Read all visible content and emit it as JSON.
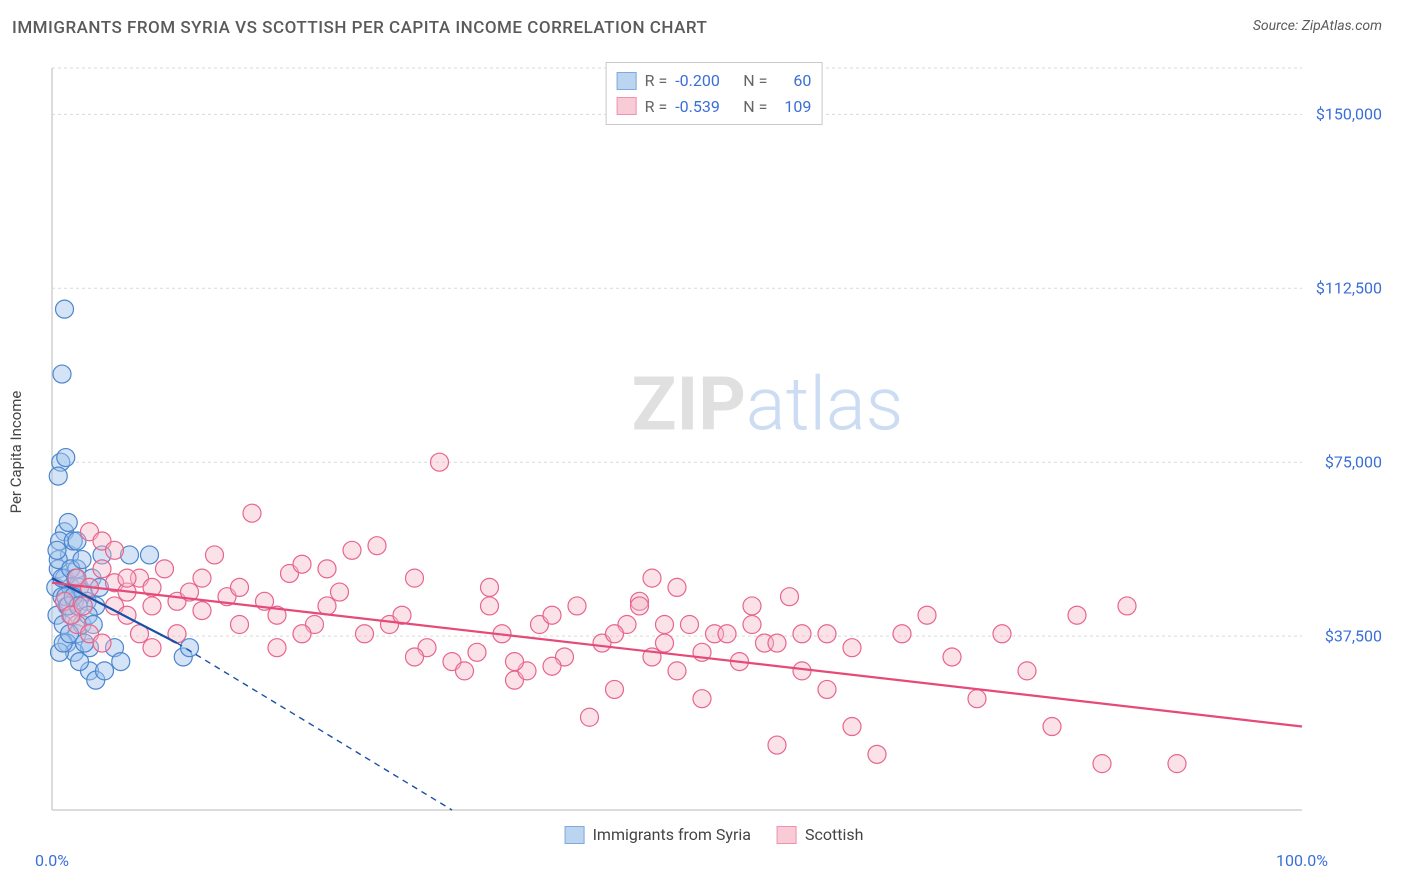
{
  "title": "IMMIGRANTS FROM SYRIA VS SCOTTISH PER CAPITA INCOME CORRELATION CHART",
  "source": "Source: ZipAtlas.com",
  "watermark": {
    "zip": "ZIP",
    "atlas": "atlas"
  },
  "chart": {
    "type": "scatter",
    "ylabel": "Per Capita Income",
    "xlim": [
      0,
      100
    ],
    "ylim": [
      0,
      160000
    ],
    "xticks": [
      {
        "v": 0,
        "label": "0.0%"
      },
      {
        "v": 100,
        "label": "100.0%"
      }
    ],
    "yticks": [
      {
        "v": 37500,
        "label": "$37,500"
      },
      {
        "v": 75000,
        "label": "$75,000"
      },
      {
        "v": 112500,
        "label": "$112,500"
      },
      {
        "v": 150000,
        "label": "$150,000"
      }
    ],
    "grid_values_y": [
      37500,
      75000,
      112500,
      150000,
      160000
    ],
    "grid_color": "#d9d9d9",
    "axis_color": "#d0d0d0",
    "background_color": "#ffffff",
    "marker_radius": 9,
    "marker_stroke_width": 1.2,
    "series": [
      {
        "id": "syria",
        "label": "Immigrants from Syria",
        "fill": "#9fc3ea",
        "fill_opacity": 0.45,
        "stroke": "#4b86cf",
        "line_color": "#1a4fa8",
        "R": "-0.200",
        "N": "60",
        "trend": {
          "x1": 0,
          "y1": 50000,
          "x2": 10,
          "y2": 36000,
          "dash_to_x": 32,
          "dash_to_y": 0
        },
        "points": [
          [
            0.3,
            48000
          ],
          [
            0.5,
            52000
          ],
          [
            0.8,
            46000
          ],
          [
            1.0,
            50000
          ],
          [
            1.2,
            44000
          ],
          [
            1.0,
            60000
          ],
          [
            1.4,
            55000
          ],
          [
            0.6,
            58000
          ],
          [
            1.5,
            48000
          ],
          [
            1.8,
            45000
          ],
          [
            2.0,
            52000
          ],
          [
            2.2,
            48000
          ],
          [
            0.4,
            42000
          ],
          [
            0.9,
            40000
          ],
          [
            1.6,
            42000
          ],
          [
            0.7,
            75000
          ],
          [
            1.1,
            76000
          ],
          [
            0.5,
            72000
          ],
          [
            1.3,
            62000
          ],
          [
            1.7,
            58000
          ],
          [
            2.5,
            47000
          ],
          [
            2.8,
            45000
          ],
          [
            3.2,
            50000
          ],
          [
            3.5,
            44000
          ],
          [
            3.8,
            48000
          ],
          [
            1.0,
            108000
          ],
          [
            0.8,
            94000
          ],
          [
            2.0,
            38000
          ],
          [
            2.4,
            40000
          ],
          [
            3.0,
            35000
          ],
          [
            4.0,
            55000
          ],
          [
            5.0,
            35000
          ],
          [
            5.5,
            32000
          ],
          [
            6.2,
            55000
          ],
          [
            7.8,
            55000
          ],
          [
            3.0,
            30000
          ],
          [
            3.5,
            28000
          ],
          [
            4.2,
            30000
          ],
          [
            1.2,
            36000
          ],
          [
            1.8,
            34000
          ],
          [
            2.2,
            32000
          ],
          [
            0.6,
            34000
          ],
          [
            0.9,
            36000
          ],
          [
            1.4,
            38000
          ],
          [
            2.6,
            36000
          ],
          [
            0.5,
            54000
          ],
          [
            0.8,
            50000
          ],
          [
            1.1,
            46000
          ],
          [
            1.5,
            52000
          ],
          [
            1.9,
            50000
          ],
          [
            10.5,
            33000
          ],
          [
            11.0,
            35000
          ],
          [
            2.0,
            58000
          ],
          [
            2.4,
            54000
          ],
          [
            0.4,
            56000
          ],
          [
            1.3,
            44000
          ],
          [
            1.7,
            46000
          ],
          [
            2.1,
            44000
          ],
          [
            2.9,
            42000
          ],
          [
            3.3,
            40000
          ]
        ]
      },
      {
        "id": "scottish",
        "label": "Scottish",
        "fill": "#f6b6c7",
        "fill_opacity": 0.4,
        "stroke": "#e8658c",
        "line_color": "#e54a78",
        "R": "-0.539",
        "N": "109",
        "trend": {
          "x1": 0,
          "y1": 49000,
          "x2": 100,
          "y2": 18000
        },
        "points": [
          [
            2,
            50000
          ],
          [
            3,
            48000
          ],
          [
            4,
            52000
          ],
          [
            5,
            49000
          ],
          [
            6,
            47000
          ],
          [
            3,
            60000
          ],
          [
            4,
            58000
          ],
          [
            5,
            56000
          ],
          [
            7,
            50000
          ],
          [
            8,
            48000
          ],
          [
            9,
            52000
          ],
          [
            10,
            45000
          ],
          [
            11,
            47000
          ],
          [
            12,
            50000
          ],
          [
            13,
            55000
          ],
          [
            14,
            46000
          ],
          [
            15,
            48000
          ],
          [
            16,
            64000
          ],
          [
            17,
            45000
          ],
          [
            18,
            42000
          ],
          [
            19,
            51000
          ],
          [
            20,
            53000
          ],
          [
            21,
            40000
          ],
          [
            22,
            44000
          ],
          [
            23,
            47000
          ],
          [
            24,
            56000
          ],
          [
            25,
            38000
          ],
          [
            26,
            57000
          ],
          [
            27,
            40000
          ],
          [
            28,
            42000
          ],
          [
            29,
            50000
          ],
          [
            30,
            35000
          ],
          [
            31,
            75000
          ],
          [
            32,
            32000
          ],
          [
            33,
            30000
          ],
          [
            34,
            34000
          ],
          [
            35,
            44000
          ],
          [
            36,
            38000
          ],
          [
            37,
            28000
          ],
          [
            38,
            30000
          ],
          [
            39,
            40000
          ],
          [
            40,
            42000
          ],
          [
            41,
            33000
          ],
          [
            42,
            44000
          ],
          [
            43,
            20000
          ],
          [
            44,
            36000
          ],
          [
            45,
            26000
          ],
          [
            46,
            40000
          ],
          [
            47,
            45000
          ],
          [
            48,
            33000
          ],
          [
            49,
            40000
          ],
          [
            50,
            30000
          ],
          [
            51,
            40000
          ],
          [
            52,
            34000
          ],
          [
            53,
            38000
          ],
          [
            54,
            38000
          ],
          [
            55,
            32000
          ],
          [
            56,
            44000
          ],
          [
            57,
            36000
          ],
          [
            58,
            14000
          ],
          [
            59,
            46000
          ],
          [
            60,
            38000
          ],
          [
            62,
            38000
          ],
          [
            64,
            35000
          ],
          [
            66,
            12000
          ],
          [
            68,
            38000
          ],
          [
            70,
            42000
          ],
          [
            72,
            33000
          ],
          [
            74,
            24000
          ],
          [
            76,
            38000
          ],
          [
            78,
            30000
          ],
          [
            80,
            18000
          ],
          [
            82,
            42000
          ],
          [
            84,
            10000
          ],
          [
            86,
            44000
          ],
          [
            5,
            44000
          ],
          [
            6,
            42000
          ],
          [
            7,
            38000
          ],
          [
            8,
            35000
          ],
          [
            2,
            40000
          ],
          [
            3,
            38000
          ],
          [
            4,
            36000
          ],
          [
            1,
            45000
          ],
          [
            1.5,
            42000
          ],
          [
            2.5,
            44000
          ],
          [
            50,
            48000
          ],
          [
            52,
            24000
          ],
          [
            48,
            50000
          ],
          [
            40,
            31000
          ],
          [
            35,
            48000
          ],
          [
            37,
            32000
          ],
          [
            29,
            33000
          ],
          [
            22,
            52000
          ],
          [
            20,
            38000
          ],
          [
            18,
            35000
          ],
          [
            15,
            40000
          ],
          [
            12,
            43000
          ],
          [
            10,
            38000
          ],
          [
            8,
            44000
          ],
          [
            6,
            50000
          ],
          [
            90,
            10000
          ],
          [
            56,
            40000
          ],
          [
            58,
            36000
          ],
          [
            60,
            30000
          ],
          [
            62,
            26000
          ],
          [
            64,
            18000
          ],
          [
            45,
            38000
          ],
          [
            47,
            44000
          ],
          [
            49,
            36000
          ]
        ]
      }
    ]
  },
  "legend_x": [
    {
      "series": 0,
      "label": "Immigrants from Syria"
    },
    {
      "series": 1,
      "label": "Scottish"
    }
  ]
}
